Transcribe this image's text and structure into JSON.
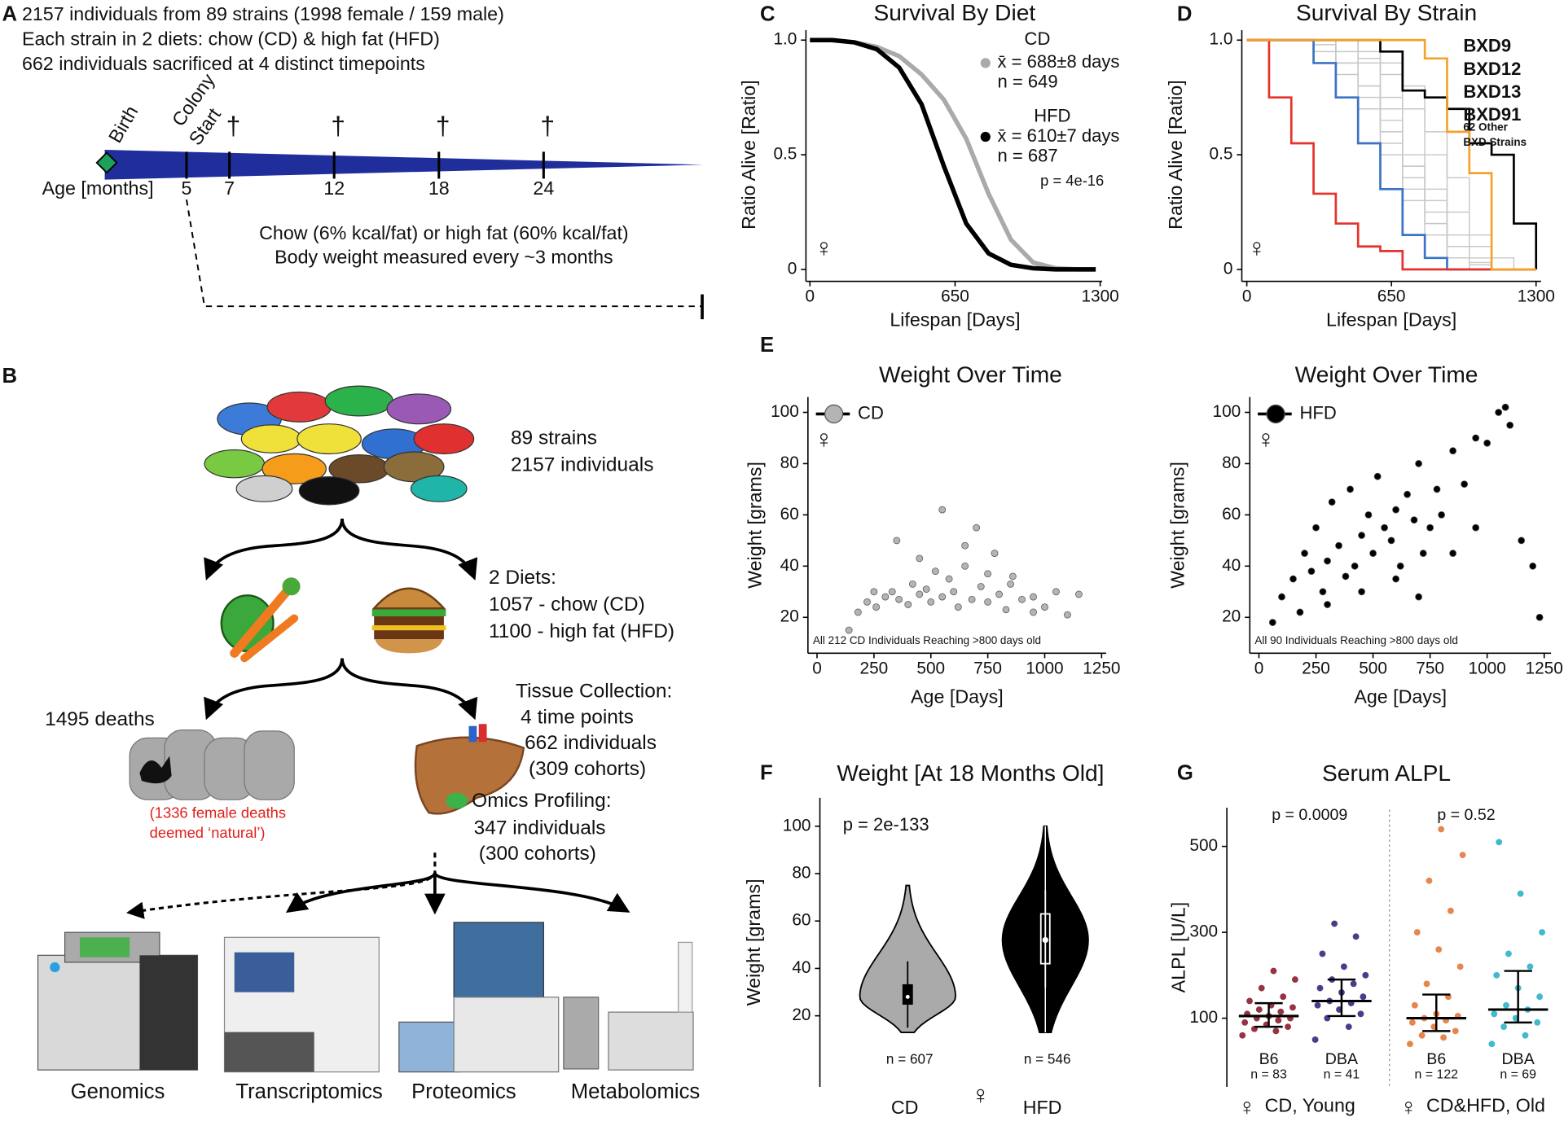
{
  "panel_labels": [
    "A",
    "B",
    "C",
    "D",
    "E",
    "F",
    "G"
  ],
  "timeline": {
    "lines": [
      "2157 individuals from 89 strains (1998 female / 159 male)",
      "Each strain in 2 diets: chow (CD) & high fat (HFD)",
      "662 individuals sacrificed at 4 distinct timepoints"
    ],
    "birth": "Birth",
    "colony_start": [
      "Colony",
      "Start"
    ],
    "age_label": "Age [months]",
    "ages": [
      5,
      7,
      12,
      18,
      24
    ],
    "sacrifice_ages": [
      7,
      12,
      18,
      24
    ],
    "dagger": "†",
    "diet_note": [
      "Chow (6% kcal/fat) or high fat (60% kcal/fat)",
      "Body weight measured every ~3 months"
    ]
  },
  "overview": {
    "strains": [
      "89 strains",
      "2157 individuals"
    ],
    "diets": [
      "2 Diets:",
      "1057 - chow (CD)",
      "1100 - high fat (HFD)"
    ],
    "deaths": "1495 deaths",
    "natural": [
      "(1336 female deaths",
      "deemed ‘natural’)"
    ],
    "tissue": [
      "Tissue Collection:",
      "4 time points",
      "662 individuals",
      "(309 cohorts)"
    ],
    "omics": [
      "Omics Profiling:",
      "347 individuals",
      "(300 cohorts)"
    ],
    "platforms": [
      "Genomics",
      "Transcriptomics",
      "Proteomics",
      "Metabolomics"
    ]
  },
  "chart_data": [
    {
      "type": "line",
      "title": "Survival By Diet",
      "xlabel": "Lifespan [Days]",
      "ylabel": "Ratio Alive [Ratio]",
      "x": [
        0,
        100,
        200,
        300,
        400,
        500,
        600,
        700,
        800,
        900,
        1000,
        1100,
        1200,
        1280
      ],
      "series": [
        {
          "name": "CD",
          "color": "#aaaaaa",
          "mean_label": "x̄ = 688±8 days",
          "n_label": "n = 649",
          "values": [
            1,
            1,
            0.99,
            0.97,
            0.93,
            0.85,
            0.74,
            0.57,
            0.33,
            0.13,
            0.03,
            0.005,
            0,
            0
          ]
        },
        {
          "name": "HFD",
          "color": "#000000",
          "mean_label": "x̄ = 610±7 days",
          "n_label": "n = 687",
          "values": [
            1,
            1,
            0.99,
            0.96,
            0.88,
            0.72,
            0.45,
            0.2,
            0.07,
            0.02,
            0.005,
            0,
            0,
            0
          ]
        }
      ],
      "annotation": "p = 4e-16",
      "symbol": "♀",
      "xlim": [
        0,
        1300
      ],
      "xticks": [
        0,
        650,
        1300
      ],
      "ylim": [
        0,
        1
      ],
      "yticks": [
        0,
        0.5,
        {
          "value": 1,
          "label": "1.0"
        }
      ]
    },
    {
      "type": "step",
      "title": "Survival By Strain",
      "xlabel": "Lifespan [Days]",
      "ylabel": "Ratio Alive [Ratio]",
      "x": [
        0,
        100,
        200,
        300,
        400,
        500,
        600,
        700,
        800,
        900,
        1000,
        1100,
        1200,
        1300
      ],
      "others": {
        "name_lines": [
          "62 Other",
          "BXD Strains"
        ],
        "color": "#c8c8c8",
        "lines": [
          [
            1,
            1,
            1,
            1,
            0.95,
            0.8,
            0.6,
            0.4,
            0.2,
            0.05,
            0,
            0,
            0,
            0
          ],
          [
            1,
            1,
            1,
            1,
            1,
            0.9,
            0.75,
            0.5,
            0.3,
            0.1,
            0,
            0,
            0,
            0
          ],
          [
            1,
            1,
            1,
            0.95,
            0.85,
            0.7,
            0.5,
            0.3,
            0.15,
            0.05,
            0,
            0,
            0,
            0
          ],
          [
            1,
            1,
            1,
            1,
            1,
            0.95,
            0.85,
            0.7,
            0.5,
            0.25,
            0.1,
            0,
            0,
            0
          ],
          [
            1,
            1,
            1,
            1,
            0.9,
            0.75,
            0.55,
            0.35,
            0.2,
            0.1,
            0.02,
            0,
            0,
            0
          ],
          [
            1,
            1,
            1,
            1,
            1,
            1,
            0.9,
            0.8,
            0.6,
            0.4,
            0.15,
            0.05,
            0,
            0
          ],
          [
            1,
            1,
            1,
            0.98,
            0.9,
            0.8,
            0.65,
            0.45,
            0.25,
            0.1,
            0.03,
            0,
            0,
            0
          ],
          [
            1,
            1,
            1,
            1,
            1,
            0.92,
            0.7,
            0.45,
            0.35,
            0.15,
            0.05,
            0,
            0,
            0
          ]
        ]
      },
      "series": [
        {
          "name": "BXD9",
          "color": "#3b73c4",
          "values": [
            1,
            1,
            1,
            0.9,
            0.75,
            0.55,
            0.35,
            0.15,
            0.05,
            0,
            0,
            0,
            0,
            0
          ]
        },
        {
          "name": "BXD12",
          "color": "#000000",
          "values": [
            1,
            1,
            1,
            1,
            1,
            1,
            0.95,
            0.78,
            0.75,
            0.7,
            0.55,
            0.5,
            0.2,
            0
          ]
        },
        {
          "name": "BXD13",
          "color": "#e5322d",
          "values": [
            1,
            0.75,
            0.55,
            0.33,
            0.2,
            0.1,
            0.08,
            0,
            0,
            0,
            0,
            0,
            0,
            0
          ]
        },
        {
          "name": "BXD91",
          "color": "#f5a22a",
          "values": [
            1,
            1,
            1,
            1,
            1,
            1,
            1,
            1,
            0.92,
            0.6,
            0.42,
            0,
            0,
            0
          ]
        }
      ],
      "symbol": "♀",
      "xlim": [
        0,
        1300
      ],
      "xticks": [
        0,
        650,
        1300
      ],
      "ylim": [
        0,
        1
      ],
      "yticks": [
        0,
        0.5,
        {
          "value": 1,
          "label": "1.0"
        }
      ]
    },
    {
      "type": "scatter",
      "title": "Weight Over Time",
      "xlabel": "Age [Days]",
      "ylabel": "Weight [grams]",
      "series": [
        {
          "name": "CD",
          "color": "#b4b4b4",
          "x": [
            140,
            180,
            220,
            260,
            300,
            330,
            360,
            400,
            420,
            450,
            480,
            500,
            520,
            550,
            580,
            600,
            620,
            650,
            680,
            700,
            720,
            750,
            780,
            800,
            830,
            860,
            900,
            950,
            1000,
            1050,
            1100,
            1150,
            250,
            350,
            450,
            550,
            650,
            750,
            850,
            950
          ],
          "values": [
            15,
            22,
            26,
            24,
            28,
            30,
            27,
            25,
            33,
            29,
            31,
            26,
            38,
            28,
            35,
            30,
            24,
            40,
            27,
            55,
            32,
            26,
            45,
            29,
            23,
            36,
            27,
            22,
            24,
            30,
            21,
            29,
            30,
            50,
            43,
            62,
            48,
            37,
            33,
            28
          ]
        }
      ],
      "annotation": "All 212 CD Individuals Reaching >800 days old",
      "symbol": "♀",
      "xlim": [
        -40,
        1270
      ],
      "xticks": [
        0,
        250,
        500,
        750,
        1000,
        1250
      ],
      "ylim": [
        6,
        106
      ],
      "yticks": [
        20,
        40,
        60,
        80,
        100
      ]
    },
    {
      "type": "scatter",
      "title": "Weight Over Time",
      "xlabel": "Age [Days]",
      "ylabel": "Weight [grams]",
      "series": [
        {
          "name": "HFD",
          "color": "#000000",
          "x": [
            60,
            100,
            150,
            180,
            200,
            230,
            250,
            280,
            300,
            320,
            350,
            380,
            400,
            420,
            450,
            480,
            500,
            520,
            550,
            580,
            600,
            620,
            650,
            680,
            700,
            720,
            750,
            780,
            800,
            850,
            900,
            950,
            1000,
            1050,
            1100,
            1150,
            1200,
            1230,
            300,
            450,
            600,
            700,
            850,
            950,
            1080
          ],
          "values": [
            18,
            28,
            35,
            22,
            45,
            38,
            55,
            30,
            42,
            65,
            48,
            36,
            70,
            40,
            52,
            60,
            45,
            75,
            55,
            50,
            62,
            40,
            68,
            58,
            80,
            45,
            55,
            70,
            60,
            85,
            72,
            90,
            88,
            100,
            95,
            50,
            40,
            20,
            25,
            30,
            35,
            28,
            45,
            55,
            102
          ]
        }
      ],
      "annotation": "All 90 Individuals Reaching >800 days old",
      "symbol": "♀",
      "xlim": [
        -40,
        1280
      ],
      "xticks": [
        0,
        250,
        500,
        750,
        1000,
        1250
      ],
      "ylim": [
        6,
        106
      ],
      "yticks": [
        20,
        40,
        60,
        80,
        100
      ]
    },
    {
      "type": "violin",
      "title": "Weight [At 18 Months Old]",
      "ylabel": "Weight [grams]",
      "categories": [
        "CD",
        "HFD"
      ],
      "colors": [
        "#aaaaaa",
        "#000000"
      ],
      "min": [
        13,
        13
      ],
      "q1": [
        25,
        42
      ],
      "median": [
        28,
        52
      ],
      "q3": [
        33,
        63
      ],
      "max": [
        75,
        100
      ],
      "n_labels": [
        "n = 607",
        "n = 546"
      ],
      "annotation": "p = 2e-133",
      "symbol": "♀",
      "ylim": [
        -10,
        112
      ],
      "yticks": [
        20,
        40,
        60,
        80,
        100
      ]
    },
    {
      "type": "strip",
      "title": "Serum ALPL",
      "ylabel": "ALPL [U/L]",
      "categories": [
        "B6",
        "DBA",
        "B6",
        "DBA"
      ],
      "n_labels": [
        "n = 83",
        "n = 41",
        "n = 122",
        "n = 69"
      ],
      "colors": [
        "#8c1c2e",
        "#2f2b7c",
        "#e2793a",
        "#2bb3c6"
      ],
      "points": [
        [
          60,
          70,
          75,
          80,
          85,
          90,
          95,
          100,
          100,
          105,
          110,
          115,
          120,
          125,
          130,
          140,
          150,
          170,
          190,
          210
        ],
        [
          50,
          80,
          100,
          110,
          120,
          130,
          135,
          140,
          150,
          160,
          170,
          180,
          190,
          200,
          220,
          250,
          290,
          320
        ],
        [
          40,
          55,
          60,
          70,
          80,
          90,
          95,
          100,
          105,
          110,
          130,
          150,
          180,
          220,
          260,
          300,
          350,
          420,
          480,
          540
        ],
        [
          40,
          60,
          80,
          90,
          100,
          110,
          120,
          130,
          150,
          170,
          200,
          220,
          250,
          300,
          390,
          510
        ]
      ],
      "median": [
        105,
        140,
        100,
        120
      ],
      "q1": [
        80,
        105,
        70,
        90
      ],
      "q3": [
        135,
        190,
        155,
        210
      ],
      "groups": [
        "CD, Young",
        "CD&HFD, Old"
      ],
      "p_labels": [
        "p = 0.0009",
        "p = 0.52"
      ],
      "symbol": "♀",
      "ylim": [
        -60,
        590
      ],
      "yticks": [
        100,
        300,
        500
      ]
    }
  ]
}
